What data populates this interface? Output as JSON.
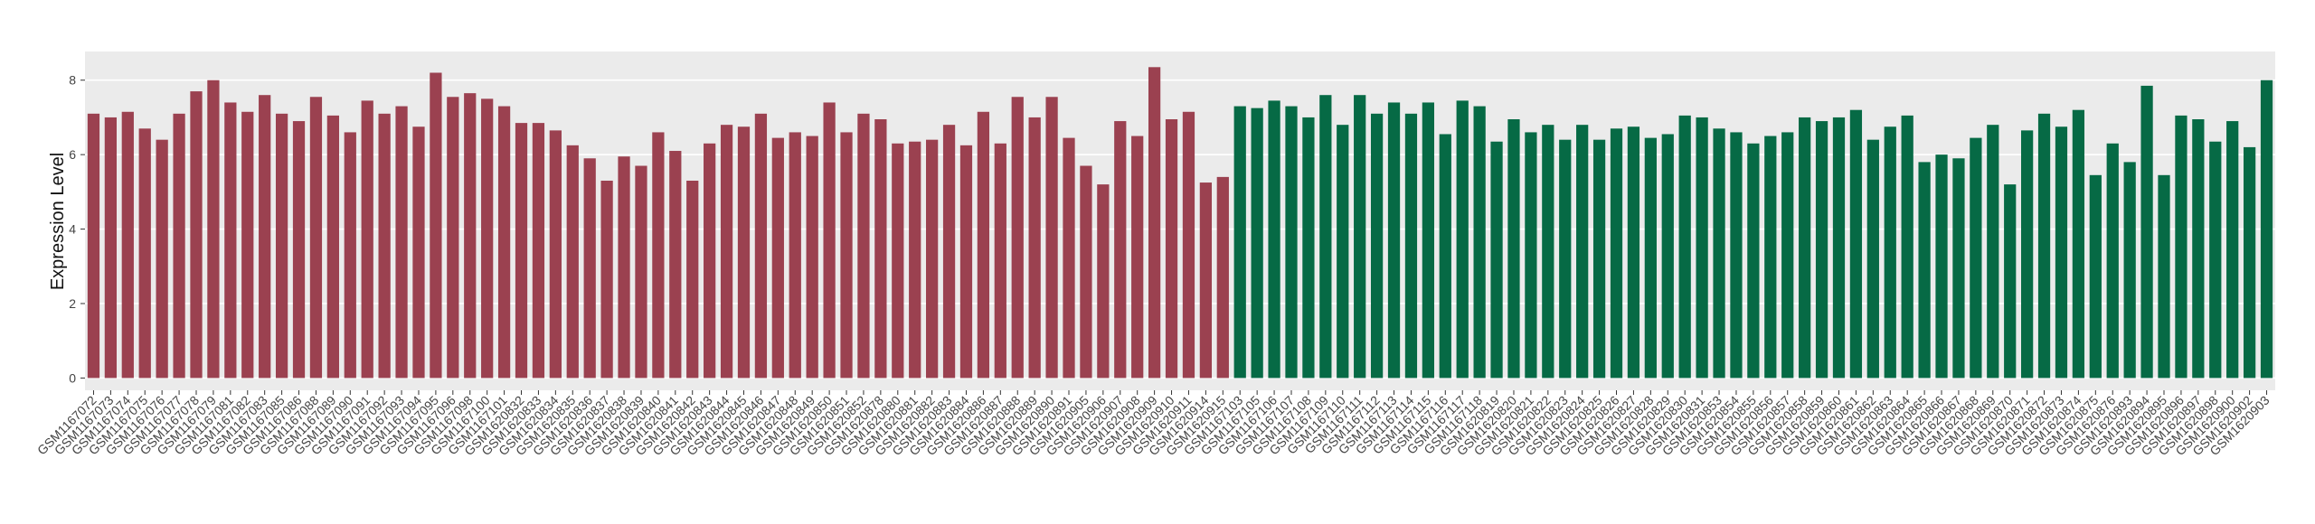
{
  "chart_data": {
    "type": "bar",
    "ylabel": "Expression Level",
    "categories": [
      "GSM1167072",
      "GSM1167073",
      "GSM1167074",
      "GSM1167075",
      "GSM1167076",
      "GSM1167077",
      "GSM1167078",
      "GSM1167079",
      "GSM1167081",
      "GSM1167082",
      "GSM1167083",
      "GSM1167085",
      "GSM1167086",
      "GSM1167088",
      "GSM1167089",
      "GSM1167090",
      "GSM1167091",
      "GSM1167092",
      "GSM1167093",
      "GSM1167094",
      "GSM1167095",
      "GSM1167096",
      "GSM1167098",
      "GSM1167100",
      "GSM1167101",
      "GSM1620832",
      "GSM1620833",
      "GSM1620834",
      "GSM1620835",
      "GSM1620836",
      "GSM1620837",
      "GSM1620838",
      "GSM1620839",
      "GSM1620840",
      "GSM1620841",
      "GSM1620842",
      "GSM1620843",
      "GSM1620844",
      "GSM1620845",
      "GSM1620846",
      "GSM1620847",
      "GSM1620848",
      "GSM1620849",
      "GSM1620850",
      "GSM1620851",
      "GSM1620852",
      "GSM1620878",
      "GSM1620880",
      "GSM1620881",
      "GSM1620882",
      "GSM1620883",
      "GSM1620884",
      "GSM1620886",
      "GSM1620887",
      "GSM1620888",
      "GSM1620889",
      "GSM1620890",
      "GSM1620891",
      "GSM1620905",
      "GSM1620906",
      "GSM1620907",
      "GSM1620908",
      "GSM1620909",
      "GSM1620910",
      "GSM1620911",
      "GSM1620914",
      "GSM1620915",
      "GSM1167103",
      "GSM1167105",
      "GSM1167106",
      "GSM1167107",
      "GSM1167108",
      "GSM1167109",
      "GSM1167110",
      "GSM1167111",
      "GSM1167112",
      "GSM1167113",
      "GSM1167114",
      "GSM1167115",
      "GSM1167116",
      "GSM1167117",
      "GSM1167118",
      "GSM1620819",
      "GSM1620820",
      "GSM1620821",
      "GSM1620822",
      "GSM1620823",
      "GSM1620824",
      "GSM1620825",
      "GSM1620826",
      "GSM1620827",
      "GSM1620828",
      "GSM1620829",
      "GSM1620830",
      "GSM1620831",
      "GSM1620853",
      "GSM1620854",
      "GSM1620855",
      "GSM1620856",
      "GSM1620857",
      "GSM1620858",
      "GSM1620859",
      "GSM1620860",
      "GSM1620861",
      "GSM1620862",
      "GSM1620863",
      "GSM1620864",
      "GSM1620865",
      "GSM1620866",
      "GSM1620867",
      "GSM1620868",
      "GSM1620869",
      "GSM1620870",
      "GSM1620871",
      "GSM1620872",
      "GSM1620873",
      "GSM1620874",
      "GSM1620875",
      "GSM1620876",
      "GSM1620893",
      "GSM1620894",
      "GSM1620895",
      "GSM1620896",
      "GSM1620897",
      "GSM1620898",
      "GSM1620900",
      "GSM1620902",
      "GSM1620903"
    ],
    "values": [
      7.1,
      7.0,
      7.15,
      6.7,
      6.4,
      7.1,
      7.7,
      8.0,
      7.4,
      7.15,
      7.6,
      7.1,
      6.9,
      7.55,
      7.05,
      6.6,
      7.45,
      7.1,
      7.3,
      6.75,
      8.2,
      7.55,
      7.65,
      7.5,
      7.3,
      6.85,
      6.85,
      6.65,
      6.25,
      5.9,
      5.3,
      5.95,
      5.7,
      6.6,
      6.1,
      5.3,
      6.3,
      6.8,
      6.75,
      7.1,
      6.45,
      6.6,
      6.5,
      7.4,
      6.6,
      7.1,
      6.95,
      6.3,
      6.35,
      6.4,
      6.8,
      6.25,
      7.15,
      6.3,
      7.55,
      7.0,
      7.55,
      6.45,
      5.7,
      5.2,
      6.9,
      6.5,
      8.35,
      6.95,
      7.15,
      5.25,
      5.4,
      7.3,
      7.25,
      7.45,
      7.3,
      7.0,
      7.6,
      6.8,
      7.6,
      7.1,
      7.4,
      7.1,
      7.4,
      6.55,
      7.45,
      7.3,
      6.35,
      6.95,
      6.6,
      6.8,
      6.4,
      6.8,
      6.4,
      6.7,
      6.75,
      6.45,
      6.55,
      7.05,
      7.0,
      6.7,
      6.6,
      6.3,
      6.5,
      6.6,
      7.0,
      6.9,
      7.0,
      7.2,
      6.4,
      6.75,
      7.05,
      5.8,
      6.0,
      5.9,
      6.45,
      6.8,
      5.2,
      6.65,
      7.1,
      6.75,
      7.2,
      5.45,
      6.3,
      5.8,
      7.85,
      5.45,
      7.05,
      6.95,
      6.35,
      6.9,
      6.2,
      8.0
    ],
    "colors": [
      "#9b4150",
      "#9b4150",
      "#9b4150",
      "#9b4150",
      "#9b4150",
      "#9b4150",
      "#9b4150",
      "#9b4150",
      "#9b4150",
      "#9b4150",
      "#9b4150",
      "#9b4150",
      "#9b4150",
      "#9b4150",
      "#9b4150",
      "#9b4150",
      "#9b4150",
      "#9b4150",
      "#9b4150",
      "#9b4150",
      "#9b4150",
      "#9b4150",
      "#9b4150",
      "#9b4150",
      "#9b4150",
      "#9b4150",
      "#9b4150",
      "#9b4150",
      "#9b4150",
      "#9b4150",
      "#9b4150",
      "#9b4150",
      "#9b4150",
      "#9b4150",
      "#9b4150",
      "#9b4150",
      "#9b4150",
      "#9b4150",
      "#9b4150",
      "#9b4150",
      "#9b4150",
      "#9b4150",
      "#9b4150",
      "#9b4150",
      "#9b4150",
      "#9b4150",
      "#9b4150",
      "#9b4150",
      "#9b4150",
      "#9b4150",
      "#9b4150",
      "#9b4150",
      "#9b4150",
      "#9b4150",
      "#9b4150",
      "#9b4150",
      "#9b4150",
      "#9b4150",
      "#9b4150",
      "#9b4150",
      "#9b4150",
      "#9b4150",
      "#9b4150",
      "#9b4150",
      "#9b4150",
      "#9b4150",
      "#9b4150",
      "#066a45",
      "#066a45",
      "#066a45",
      "#066a45",
      "#066a45",
      "#066a45",
      "#066a45",
      "#066a45",
      "#066a45",
      "#066a45",
      "#066a45",
      "#066a45",
      "#066a45",
      "#066a45",
      "#066a45",
      "#066a45",
      "#066a45",
      "#066a45",
      "#066a45",
      "#066a45",
      "#066a45",
      "#066a45",
      "#066a45",
      "#066a45",
      "#066a45",
      "#066a45",
      "#066a45",
      "#066a45",
      "#066a45",
      "#066a45",
      "#066a45",
      "#066a45",
      "#066a45",
      "#066a45",
      "#066a45",
      "#066a45",
      "#066a45",
      "#066a45",
      "#066a45",
      "#066a45",
      "#066a45",
      "#066a45",
      "#066a45",
      "#066a45",
      "#066a45",
      "#066a45",
      "#066a45",
      "#066a45",
      "#066a45",
      "#066a45",
      "#066a45",
      "#066a45",
      "#066a45",
      "#066a45",
      "#066a45",
      "#066a45",
      "#066a45",
      "#066a45",
      "#066a45",
      "#066a45",
      "#066a45"
    ],
    "ylim": [
      -0.33,
      8.77
    ],
    "yticks": [
      0,
      2,
      4,
      6,
      8
    ],
    "grid": true
  }
}
